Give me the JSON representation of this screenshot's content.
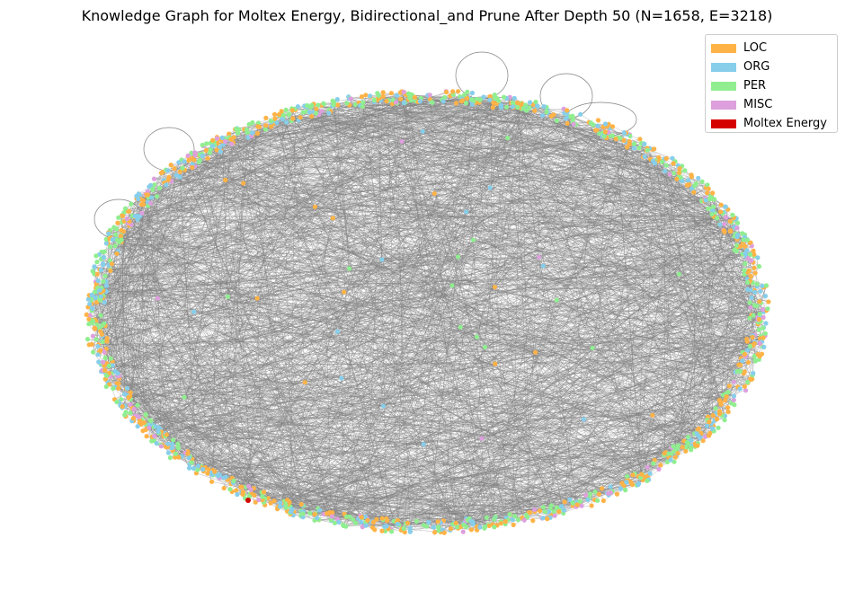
{
  "title": "Knowledge Graph for Moltex Energy, Bidirectional_and Prune After Depth 50 (N=1658, E=3218)",
  "graph": {
    "node_count": 1658,
    "edge_count": 3218,
    "edge_color": "#808080",
    "layout": "ellipse-ring"
  },
  "legend": [
    {
      "label": "LOC",
      "color": "#FFB347"
    },
    {
      "label": "ORG",
      "color": "#87CEEB"
    },
    {
      "label": "PER",
      "color": "#90EE90"
    },
    {
      "label": "MISC",
      "color": "#DDA0DD"
    },
    {
      "label": "Moltex Energy",
      "color": "#D40000"
    }
  ]
}
